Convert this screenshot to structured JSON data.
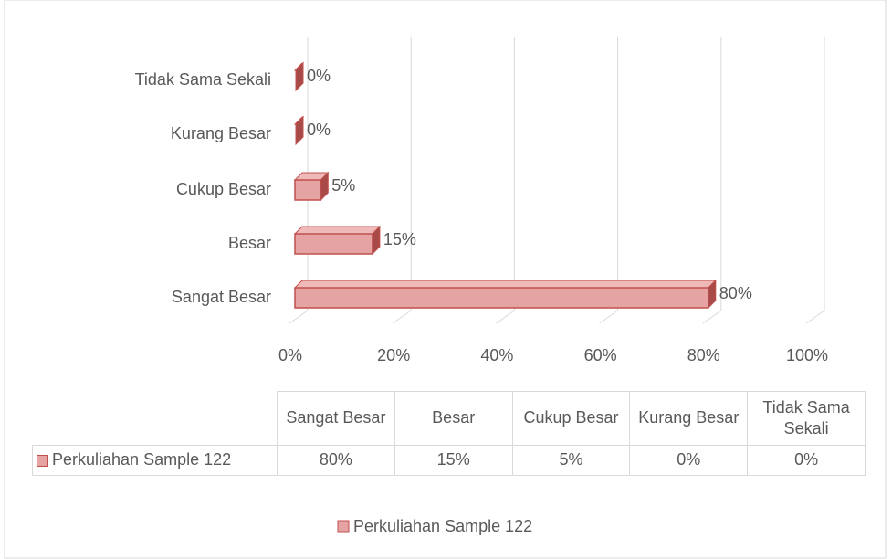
{
  "chart_data": {
    "type": "bar",
    "orientation": "horizontal",
    "categories": [
      "Sangat Besar",
      "Besar",
      "Cukup Besar",
      "Kurang Besar",
      "Tidak Sama Sekali"
    ],
    "series": [
      {
        "name": "Perkuliahan Sample 122",
        "color": "#e6a3a3",
        "edge_color": "#c0504d",
        "values": [
          80,
          15,
          5,
          0,
          0
        ],
        "value_labels": [
          "80%",
          "15%",
          "5%",
          "0%",
          "0%"
        ]
      }
    ],
    "xlim": [
      0,
      100
    ],
    "xticks": [
      {
        "value": 0,
        "label": "0%"
      },
      {
        "value": 20,
        "label": "20%"
      },
      {
        "value": 40,
        "label": "40%"
      },
      {
        "value": 60,
        "label": "60%"
      },
      {
        "value": 80,
        "label": "80%"
      },
      {
        "value": 100,
        "label": "100%"
      }
    ],
    "grid": true,
    "legend": "bottom",
    "data_table": true
  }
}
